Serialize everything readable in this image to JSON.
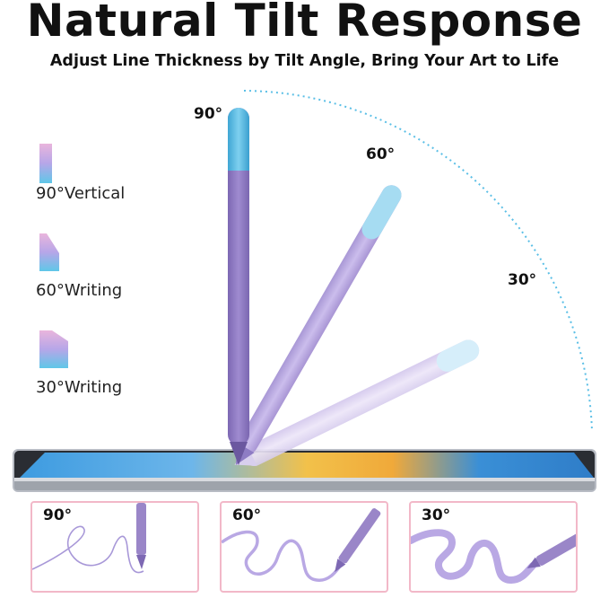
{
  "header": {
    "title": "Natural Tilt Response",
    "subtitle": "Adjust Line Thickness by Tilt Angle, Bring Your Art to Life"
  },
  "legend": [
    {
      "label": "90°Vertical"
    },
    {
      "label": "60°Writing"
    },
    {
      "label": "30°Writing"
    }
  ],
  "angles": {
    "a90": "90°",
    "a60": "60°",
    "a30": "30°"
  },
  "panels": [
    {
      "label": "90°"
    },
    {
      "label": "60°"
    },
    {
      "label": "30°"
    }
  ],
  "colors": {
    "pen_purple": "#9a86c8",
    "pen_tip_blue": "#6cc4e6",
    "light_purple": "#c7b8e6",
    "stroke_lavender": "#b9a8e4",
    "panel_border": "#f2b8c8",
    "arc_dots": "#5bbfe6"
  }
}
